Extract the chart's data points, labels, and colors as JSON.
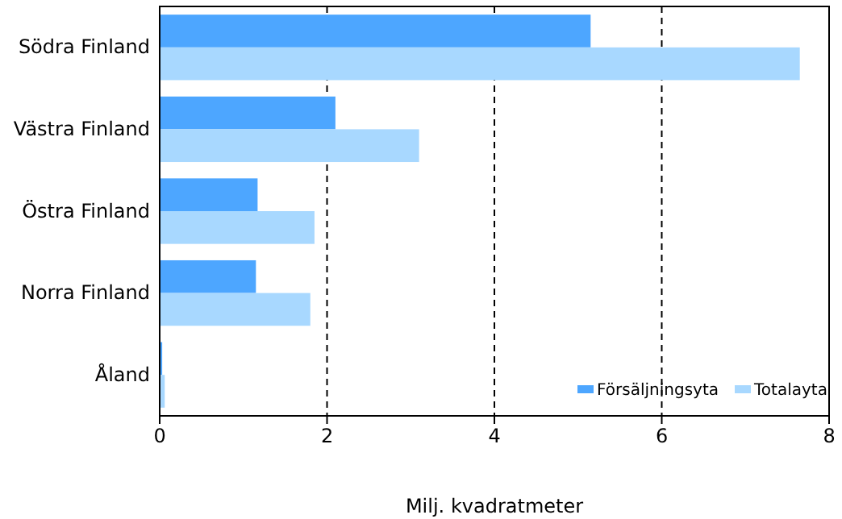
{
  "chart_data": {
    "type": "bar",
    "orientation": "horizontal",
    "xlabel": "Milj. kvadratmeter",
    "categories": [
      "Södra Finland",
      "Västra Finland",
      "Östra Finland",
      "Norra Finland",
      "Åland"
    ],
    "series": [
      {
        "name": "Försäljningsyta",
        "color": "#4da6ff",
        "values": [
          5.15,
          2.1,
          1.17,
          1.15,
          0.03
        ]
      },
      {
        "name": "Totalayta",
        "color": "#a8d8ff",
        "values": [
          7.65,
          3.1,
          1.85,
          1.8,
          0.06
        ]
      }
    ],
    "xlim": [
      0,
      8
    ],
    "xticks": [
      0,
      2,
      4,
      6,
      8
    ],
    "grid": "x",
    "legend": "bottom right"
  }
}
